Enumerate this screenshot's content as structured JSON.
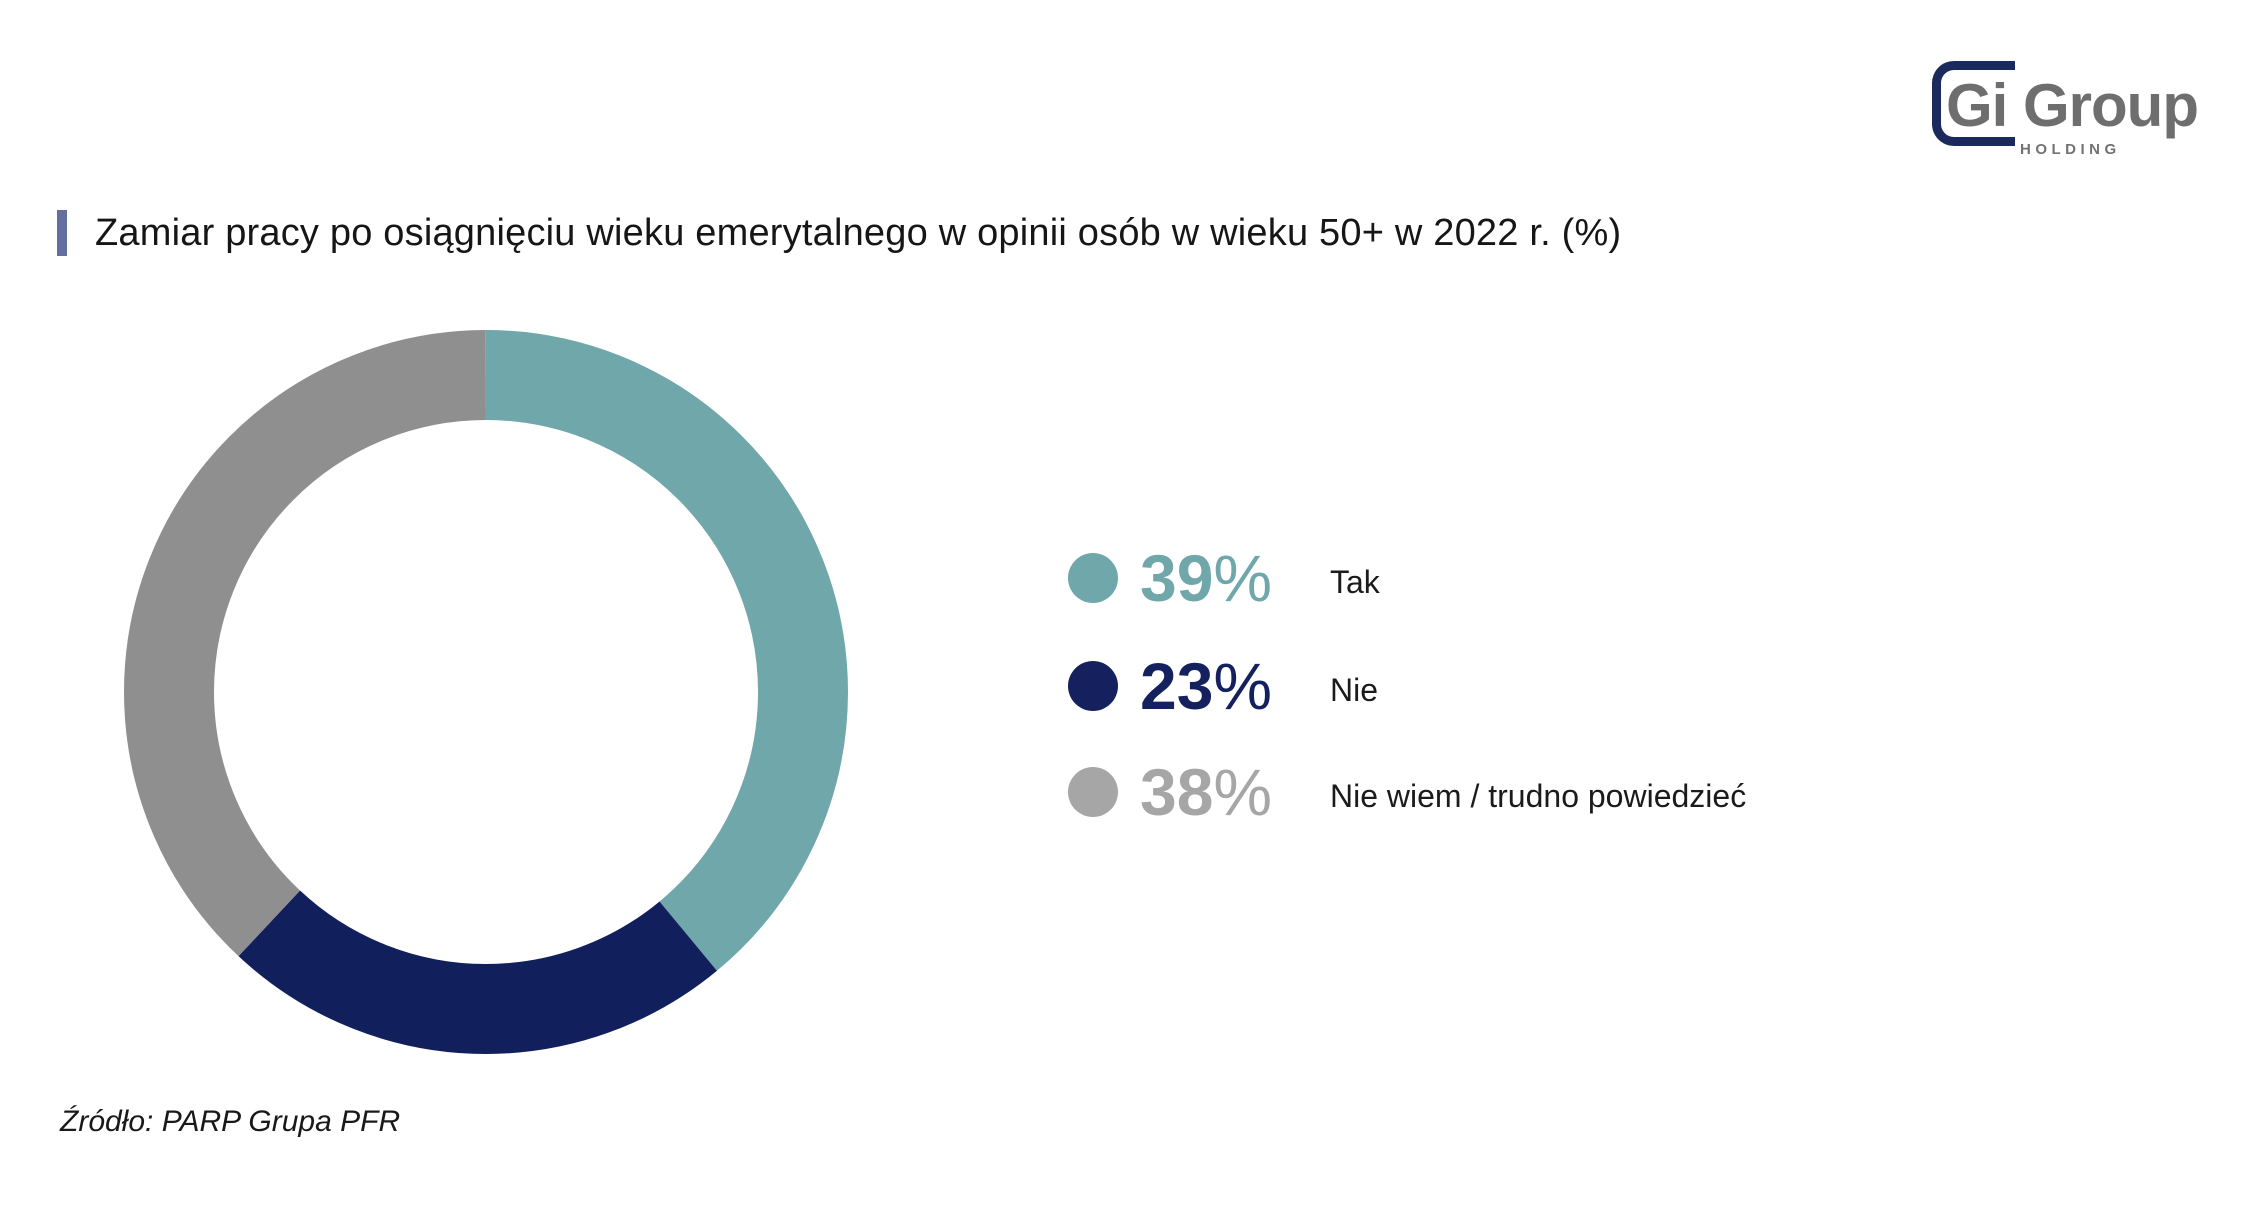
{
  "logo": {
    "wordmark": "Gi Group",
    "subtitle": "HOLDING",
    "bracket_color": "#1B2A5C",
    "wordmark_color": "#6E6E6E",
    "subtitle_color": "#737373"
  },
  "header": {
    "title": "Zamiar pracy po osiągnięciu wieku emerytalnego w opinii osób w wieku 50+ w 2022 r. (%)",
    "accent_color": "#636F9F"
  },
  "chart_data": {
    "type": "pie",
    "subtype": "donut",
    "title": "Zamiar pracy po osiągnięciu wieku emerytalnego w opinii osób w wieku 50+ w 2022 r. (%)",
    "labels": [
      "Tak",
      "Nie",
      "Nie wiem / trudno powiedzieć"
    ],
    "values": [
      39,
      23,
      38
    ],
    "unit": "%",
    "colors": [
      "#6FA7AB",
      "#111F5C",
      "#8F8F8F"
    ],
    "start_angle": "top",
    "direction": "clockwise",
    "inner_radius_ratio": 0.75,
    "legend_position": "right",
    "source": "Źródło: PARP Grupa PFR"
  },
  "legend": {
    "items": [
      {
        "value_text": "39",
        "unit": "%",
        "label": "Tak",
        "color": "#6FA7AB"
      },
      {
        "value_text": "23",
        "unit": "%",
        "label": "Nie",
        "color": "#14215E"
      },
      {
        "value_text": "38",
        "unit": "%",
        "label": "Nie wiem / trudno powiedzieć",
        "color": "#A6A6A6"
      }
    ]
  },
  "footer": {
    "source": "Źródło: PARP Grupa PFR"
  }
}
